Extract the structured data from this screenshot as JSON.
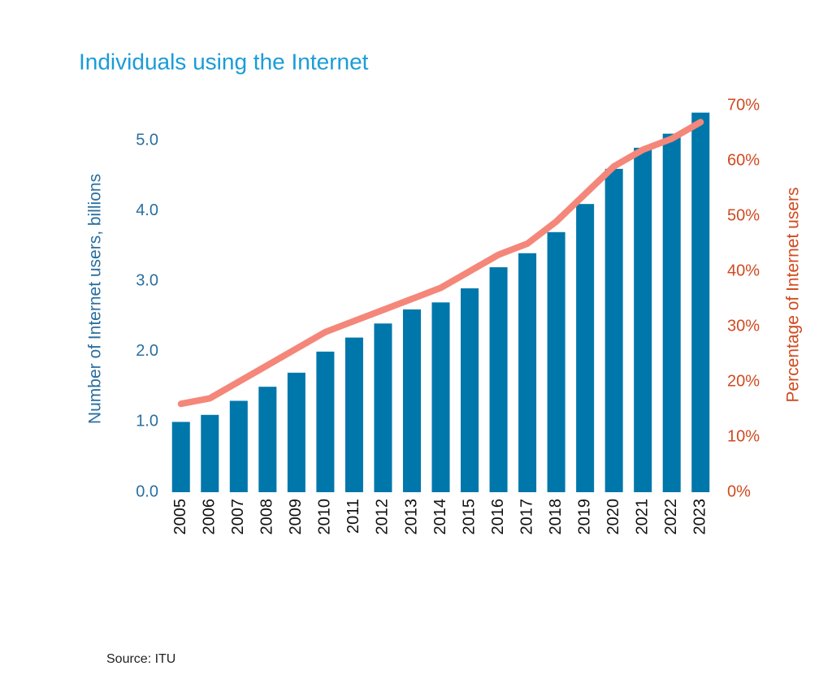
{
  "chart_data": {
    "type": "bar-line",
    "title": "Individuals using the Internet",
    "categories": [
      "2005",
      "2006",
      "2007",
      "2008",
      "2009",
      "2010",
      "2011",
      "2012",
      "2013",
      "2014",
      "2015",
      "2016",
      "2017",
      "2018",
      "2019",
      "2020",
      "2021",
      "2022",
      "2023"
    ],
    "series": [
      {
        "name": "Number of Internet users, billions",
        "type": "bar",
        "color": "#0077aa",
        "values": [
          1.0,
          1.1,
          1.3,
          1.5,
          1.7,
          2.0,
          2.2,
          2.4,
          2.6,
          2.7,
          2.9,
          3.2,
          3.4,
          3.7,
          4.1,
          4.6,
          4.9,
          5.1,
          5.4
        ]
      },
      {
        "name": "Percentage of Internet users",
        "type": "line",
        "axis": "y2",
        "color": "#f4877a",
        "values": [
          16,
          17,
          20,
          23,
          26,
          29,
          31,
          33,
          35,
          37,
          40,
          43,
          45,
          49,
          54,
          59,
          62,
          64,
          67
        ]
      }
    ],
    "y_label": "Number of Internet users, billions",
    "y2_label": "Percentage of Internet users",
    "ylim": [
      0,
      5.5
    ],
    "yticks": [
      {
        "value": 0,
        "label": "0.0"
      },
      {
        "value": 1,
        "label": "1.0"
      },
      {
        "value": 2,
        "label": "2.0"
      },
      {
        "value": 3,
        "label": "3.0"
      },
      {
        "value": 4,
        "label": "4.0"
      },
      {
        "value": 5,
        "label": "5.0"
      }
    ],
    "y2lim": [
      0,
      70
    ],
    "y2ticks": [
      {
        "value": 0,
        "label": "0%"
      },
      {
        "value": 10,
        "label": "10%"
      },
      {
        "value": 20,
        "label": "20%"
      },
      {
        "value": 30,
        "label": "30%"
      },
      {
        "value": 40,
        "label": "40%"
      },
      {
        "value": 50,
        "label": "50%"
      },
      {
        "value": 60,
        "label": "60%"
      },
      {
        "value": 70,
        "label": "70%"
      }
    ],
    "y_color": "#2a6f9f",
    "y2_color": "#d04a1f",
    "source": "Source: ITU"
  }
}
